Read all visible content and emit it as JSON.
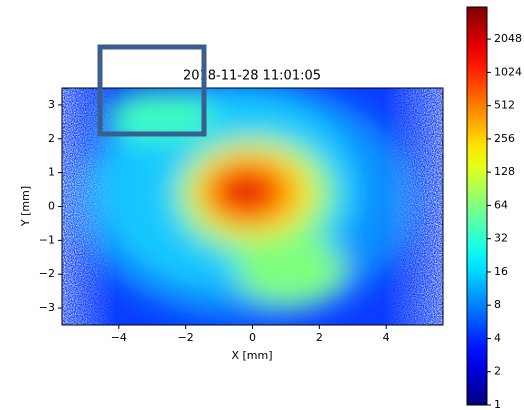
{
  "chart_data": {
    "type": "heatmap",
    "title": "2018-11-28 11:01:05",
    "xlabel": "X [mm]",
    "ylabel": "Y [mm]",
    "xlim": [
      -5.7,
      5.7
    ],
    "ylim": [
      -3.5,
      3.5
    ],
    "xticks": [
      {
        "value": -4,
        "label": "−4"
      },
      {
        "value": -2,
        "label": "−2"
      },
      0,
      2,
      4
    ],
    "yticks": [
      {
        "value": -3,
        "label": "−3"
      },
      {
        "value": -2,
        "label": "−2"
      },
      {
        "value": -1,
        "label": "−1"
      },
      0,
      1,
      2,
      3
    ],
    "colormap": "jet",
    "colorbar_scale": "log2",
    "clim": [
      1,
      4000
    ],
    "colorbar_ticks": [
      1,
      2,
      4,
      8,
      16,
      32,
      64,
      128,
      256,
      512,
      1024,
      2048
    ]
  }
}
